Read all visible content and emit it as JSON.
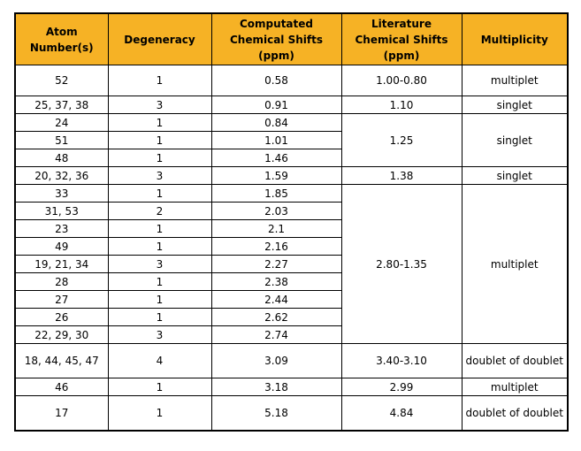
{
  "headers": [
    "Atom Number(s)",
    "Degeneracy",
    "Computated Chemical Shifts (ppm)",
    "Literature Chemical Shifts (ppm)",
    "Multiplicity"
  ],
  "rows": [
    {
      "atoms": "52",
      "degeneracy": "1",
      "computed": "0.58"
    },
    {
      "atoms": "25, 37, 38",
      "degeneracy": "3",
      "computed": "0.91"
    },
    {
      "atoms": "24",
      "degeneracy": "1",
      "computed": "0.84"
    },
    {
      "atoms": "51",
      "degeneracy": "1",
      "computed": "1.01"
    },
    {
      "atoms": "48",
      "degeneracy": "1",
      "computed": "1.46"
    },
    {
      "atoms": "20, 32, 36",
      "degeneracy": "3",
      "computed": "1.59"
    },
    {
      "atoms": "33",
      "degeneracy": "1",
      "computed": "1.85"
    },
    {
      "atoms": "31, 53",
      "degeneracy": "2",
      "computed": "2.03"
    },
    {
      "atoms": "23",
      "degeneracy": "1",
      "computed": "2.1"
    },
    {
      "atoms": "49",
      "degeneracy": "1",
      "computed": "2.16"
    },
    {
      "atoms": "19, 21, 34",
      "degeneracy": "3",
      "computed": "2.27"
    },
    {
      "atoms": "28",
      "degeneracy": "1",
      "computed": "2.38"
    },
    {
      "atoms": "27",
      "degeneracy": "1",
      "computed": "2.44"
    },
    {
      "atoms": "26",
      "degeneracy": "1",
      "computed": "2.62"
    },
    {
      "atoms": "22, 29, 30",
      "degeneracy": "3",
      "computed": "2.74"
    },
    {
      "atoms": "18, 44, 45, 47",
      "degeneracy": "4",
      "computed": "3.09"
    },
    {
      "atoms": "46",
      "degeneracy": "1",
      "computed": "3.18"
    },
    {
      "atoms": "17",
      "degeneracy": "1",
      "computed": "5.18"
    }
  ],
  "groups": [
    {
      "literature": "1.00-0.80",
      "multiplicity": "multiplet"
    },
    {
      "literature": "1.10",
      "multiplicity": "singlet"
    },
    {
      "literature": "1.25",
      "multiplicity": "singlet"
    },
    {
      "literature": "1.38",
      "multiplicity": "singlet"
    },
    {
      "literature": "2.80-1.35",
      "multiplicity": "multiplet"
    },
    {
      "literature": "3.40-3.10",
      "multiplicity": "doublet of doublet"
    },
    {
      "literature": "2.99",
      "multiplicity": "multiplet"
    },
    {
      "literature": "4.84",
      "multiplicity": "doublet of doublet"
    }
  ],
  "colors": {
    "header_bg": "#f6b225"
  }
}
